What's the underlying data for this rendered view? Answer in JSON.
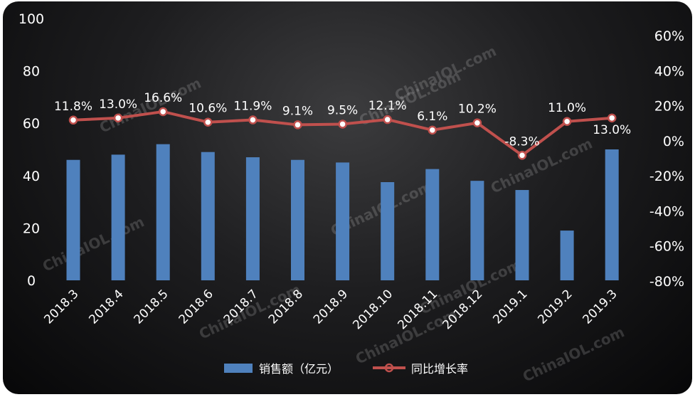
{
  "chart_data": {
    "type": "bar+line",
    "categories": [
      "2018.3",
      "2018.4",
      "2018.5",
      "2018.6",
      "2018.7",
      "2018.8",
      "2018.9",
      "2018.10",
      "2018.11",
      "2018.12",
      "2019.1",
      "2019.2",
      "2019.3"
    ],
    "series": [
      {
        "name": "销售额（亿元）",
        "type": "bar",
        "axis": "left",
        "color": "#4f81bd",
        "values": [
          46,
          48,
          52,
          49,
          47,
          46,
          45,
          37.5,
          42.5,
          38,
          34.5,
          19,
          50
        ]
      },
      {
        "name": "同比增长率",
        "type": "line",
        "axis": "right",
        "color": "#c0504d",
        "values": [
          11.8,
          13.0,
          16.6,
          10.6,
          11.9,
          9.1,
          9.5,
          12.1,
          6.1,
          10.2,
          -8.3,
          11.0,
          13.0
        ],
        "labels": [
          "11.8%",
          "13.0%",
          "16.6%",
          "10.6%",
          "11.9%",
          "9.1%",
          "9.5%",
          "12.1%",
          "6.1%",
          "10.2%",
          "-8.3%",
          "11.0%",
          "13.0%"
        ]
      }
    ],
    "y_left": {
      "min": 0,
      "max": 100,
      "ticks": [
        0,
        20,
        40,
        60,
        80,
        100
      ],
      "tick_labels": [
        "0",
        "20",
        "40",
        "60",
        "80",
        "100"
      ]
    },
    "y_right": {
      "min": -80,
      "max": 60,
      "ticks": [
        -80,
        -60,
        -40,
        -20,
        0,
        20,
        40,
        60
      ],
      "tick_labels": [
        "-80%",
        "-60%",
        "-40%",
        "-20%",
        "0%",
        "20%",
        "40%",
        "60%"
      ]
    },
    "grid": false,
    "legend_position": "bottom-center",
    "background": "#1a1a1c",
    "text_color": "#ffffff"
  },
  "watermark": {
    "text": "ChinaIOL.com"
  }
}
